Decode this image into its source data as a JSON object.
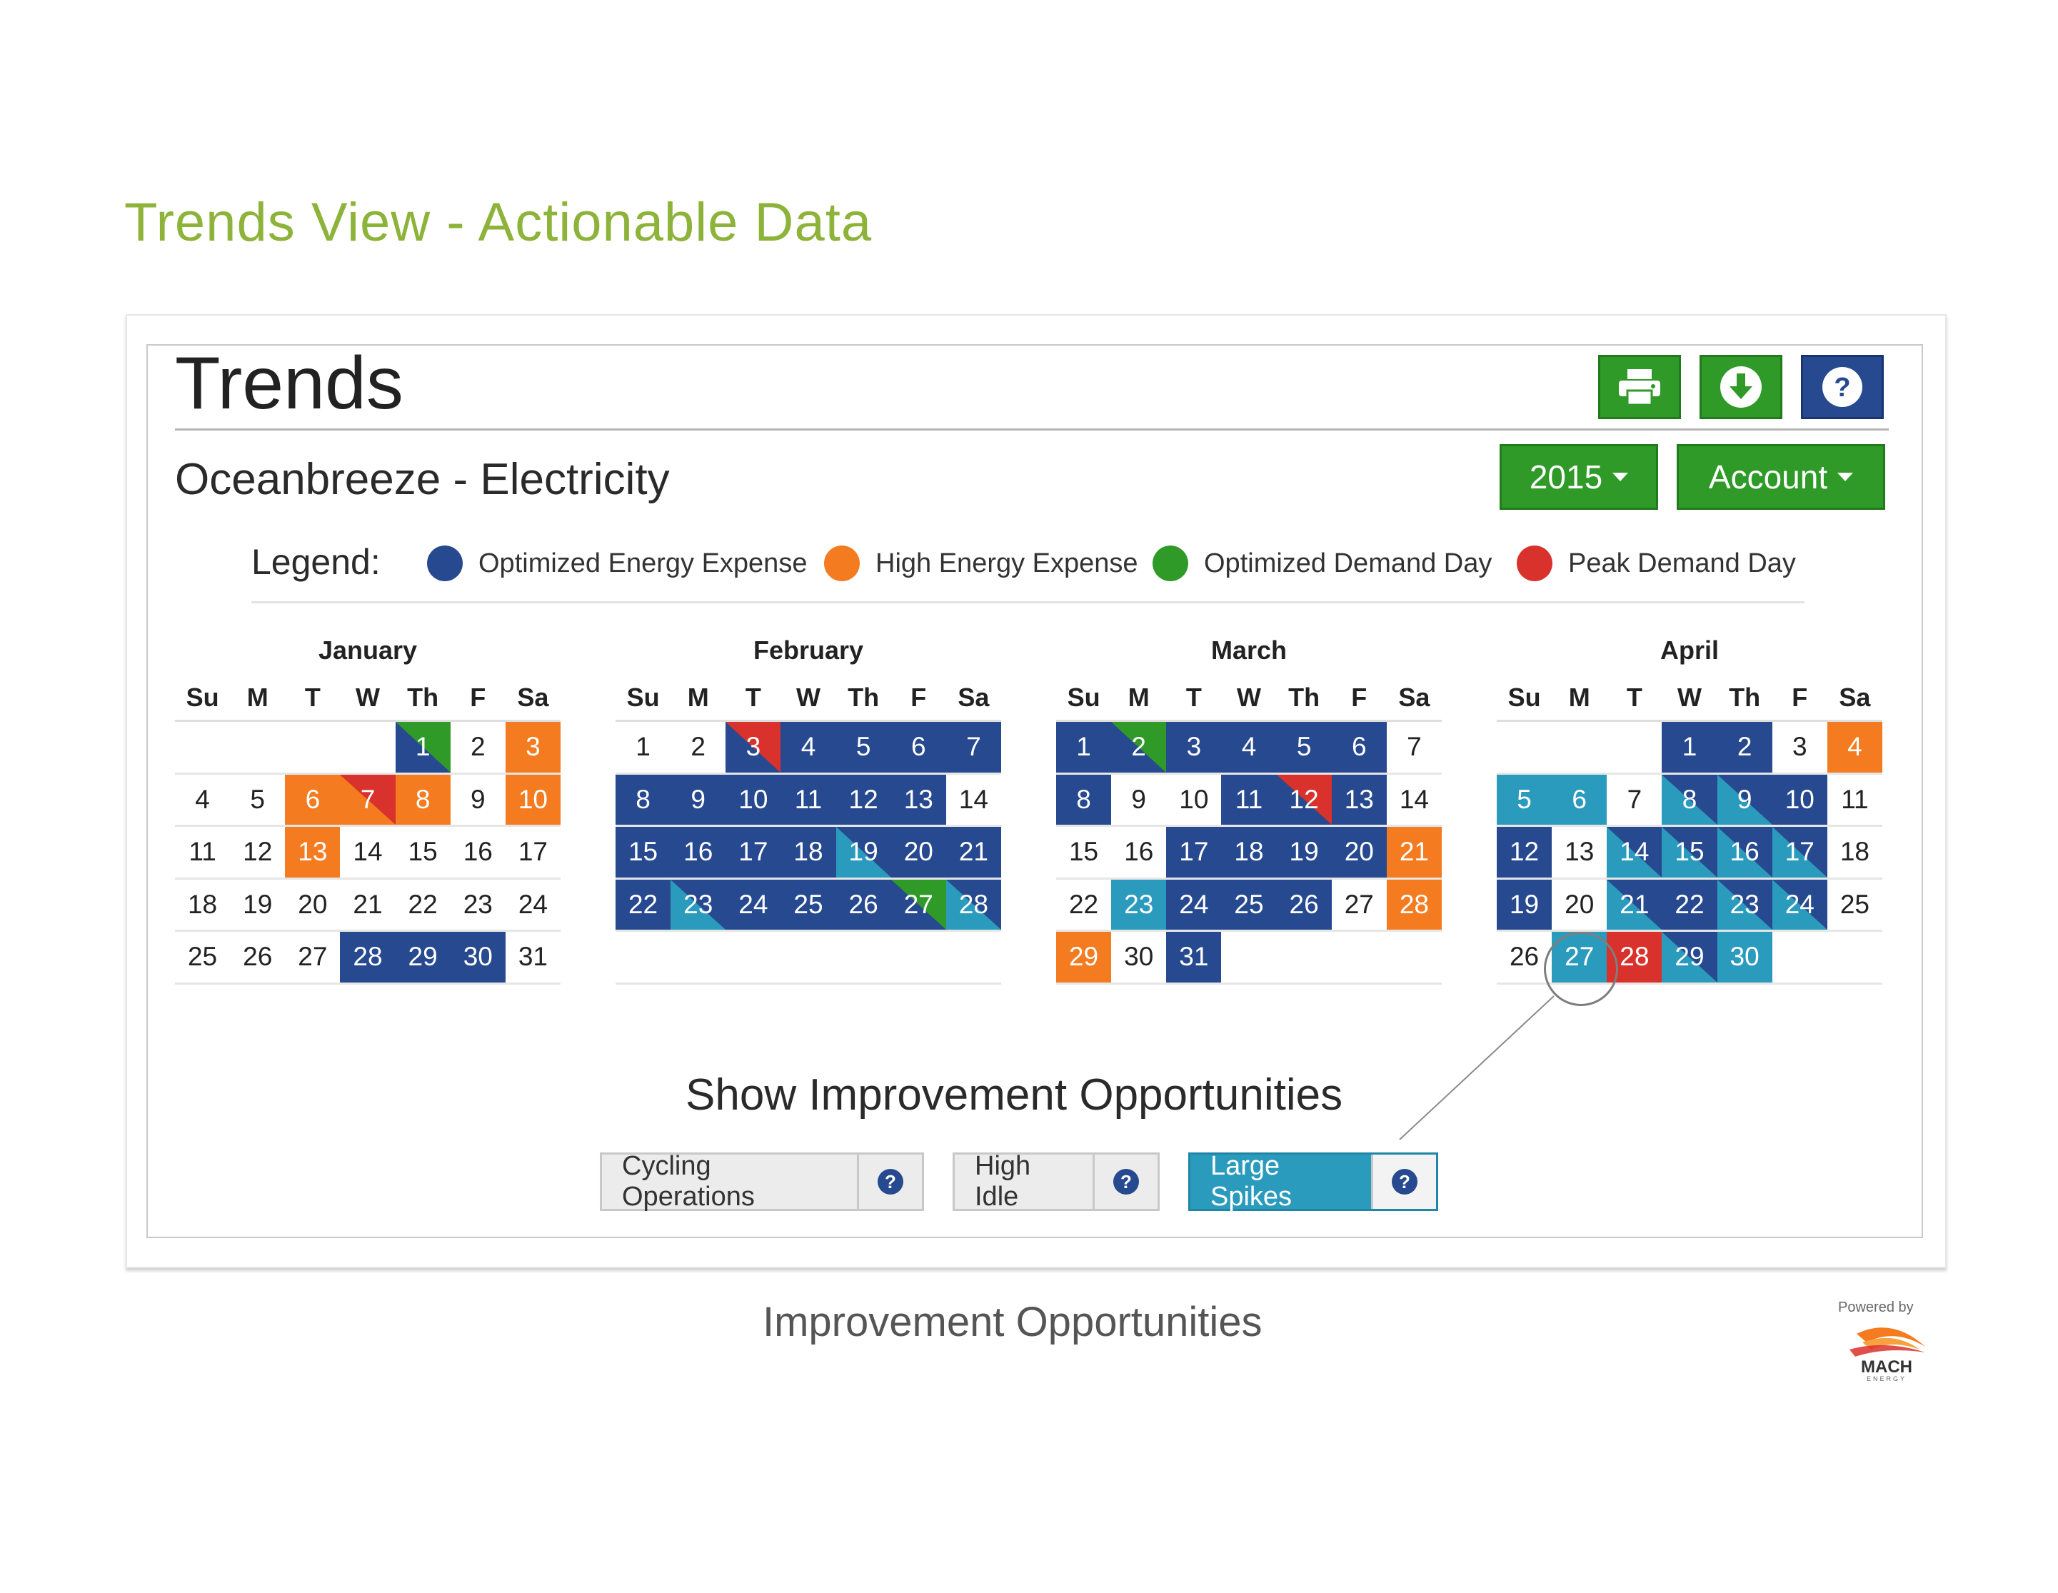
{
  "slide_title": "Trends View - Actionable Data",
  "app": {
    "title": "Trends",
    "subtitle": "Oceanbreeze - Electricity",
    "toolbar": {
      "print_icon": "printer-icon",
      "download_icon": "download-icon",
      "help_icon": "help-icon"
    },
    "year_dropdown": "2015",
    "account_dropdown": "Account"
  },
  "legend": {
    "label": "Legend:",
    "items": [
      {
        "label": "Optimized Energy Expense",
        "color": "#27498f"
      },
      {
        "label": "High Energy Expense",
        "color": "#f47b20"
      },
      {
        "label": "Optimized Demand Day",
        "color": "#2f9a28"
      },
      {
        "label": "Peak Demand Day",
        "color": "#d9312b"
      }
    ]
  },
  "colors": {
    "blue": "#27498f",
    "orange": "#f47b20",
    "green": "#2f9a28",
    "red": "#d9312b",
    "teal": "#2b9bbd"
  },
  "weekdays": [
    "Su",
    "M",
    "T",
    "W",
    "Th",
    "F",
    "Sa"
  ],
  "months": [
    {
      "name": "January",
      "start": 4,
      "days": 31,
      "colors": {
        "1": "blue/green",
        "3": "orange",
        "6": "orange",
        "7": "orange/red",
        "8": "orange",
        "10": "orange",
        "13": "orange",
        "28": "blue",
        "29": "blue",
        "30": "blue"
      }
    },
    {
      "name": "February",
      "start": 0,
      "days": 28,
      "colors": {
        "3": "blue/red",
        "4": "blue",
        "5": "blue",
        "6": "blue",
        "7": "blue",
        "8": "blue",
        "9": "blue",
        "10": "blue",
        "11": "blue",
        "12": "blue",
        "13": "blue",
        "15": "blue",
        "16": "blue",
        "17": "blue",
        "18": "blue",
        "19": "teal/blue",
        "20": "blue",
        "21": "blue",
        "22": "blue",
        "23": "teal/blue",
        "24": "blue",
        "25": "blue",
        "26": "blue",
        "27": "blue/green",
        "28": "teal/blue"
      }
    },
    {
      "name": "March",
      "start": 0,
      "days": 31,
      "colors": {
        "1": "blue",
        "2": "blue/green",
        "3": "blue",
        "4": "blue",
        "5": "blue",
        "6": "blue",
        "8": "blue",
        "11": "blue",
        "12": "blue/red",
        "13": "blue",
        "17": "blue",
        "18": "blue",
        "19": "blue",
        "20": "blue",
        "21": "orange",
        "23": "teal",
        "24": "blue",
        "25": "blue",
        "26": "blue",
        "28": "orange",
        "29": "orange",
        "31": "blue"
      }
    },
    {
      "name": "April",
      "start": 3,
      "days": 30,
      "colors": {
        "1": "blue",
        "2": "blue",
        "4": "orange",
        "5": "teal",
        "6": "teal",
        "8": "teal/blue",
        "9": "teal/blue",
        "10": "blue",
        "12": "blue",
        "14": "teal/blue",
        "15": "teal/blue",
        "16": "teal/blue",
        "17": "teal/blue",
        "19": "blue",
        "21": "teal/blue",
        "22": "blue",
        "23": "teal/blue",
        "24": "teal/blue",
        "27": "teal",
        "28": "red",
        "29": "teal/blue",
        "30": "teal"
      }
    }
  ],
  "opportunities": {
    "title": "Show Improvement Opportunities",
    "buttons": [
      {
        "label": "Cycling Operations",
        "active": false
      },
      {
        "label": "High Idle",
        "active": false
      },
      {
        "label": "Large Spikes",
        "active": true
      }
    ]
  },
  "caption": "Improvement Opportunities",
  "powered_by": "Powered by",
  "logo": {
    "text": "MACH",
    "subtext": "ENERGY"
  }
}
